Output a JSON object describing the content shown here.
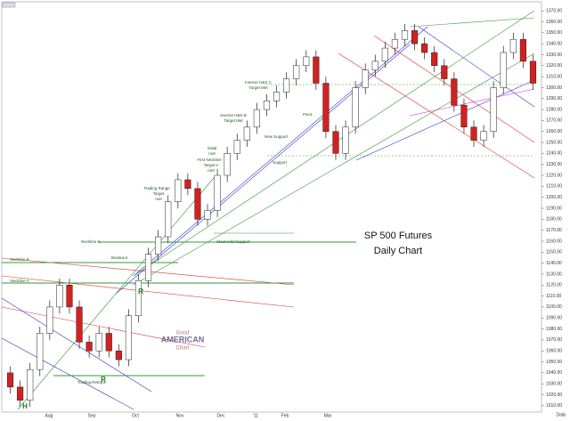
{
  "chart_data": {
    "type": "candlestick",
    "title": "SP 500 Futures",
    "subtitle": "Daily Chart",
    "x_labels": [
      "Aug",
      "Sep",
      "Oct",
      "Nov",
      "Dec",
      "'11",
      "Feb",
      "Mar"
    ],
    "period": "Daily",
    "open": [
      1040,
      1027,
      1015,
      1043,
      1076,
      1100,
      1120,
      1100,
      1068,
      1060,
      1076,
      1060,
      1052,
      1092,
      1124,
      1148,
      1164,
      1196,
      1216,
      1208,
      1180,
      1188,
      1220,
      1240,
      1252,
      1264,
      1280,
      1288,
      1296,
      1308,
      1320,
      1328,
      1304,
      1260,
      1240,
      1264,
      1300,
      1316,
      1324,
      1336,
      1344,
      1352,
      1340,
      1332,
      1320,
      1308,
      1284,
      1264,
      1252,
      1260,
      1300,
      1332,
      1344,
      1324
    ],
    "high": [
      1046,
      1033,
      1049,
      1082,
      1106,
      1126,
      1126,
      1106,
      1074,
      1082,
      1082,
      1066,
      1098,
      1130,
      1154,
      1170,
      1202,
      1222,
      1222,
      1214,
      1194,
      1226,
      1246,
      1258,
      1270,
      1286,
      1294,
      1302,
      1314,
      1326,
      1334,
      1334,
      1310,
      1266,
      1270,
      1306,
      1322,
      1330,
      1342,
      1350,
      1358,
      1358,
      1346,
      1338,
      1326,
      1314,
      1290,
      1270,
      1266,
      1306,
      1338,
      1350,
      1350,
      1330
    ],
    "low": [
      1021,
      1009,
      1009,
      1037,
      1070,
      1094,
      1094,
      1062,
      1054,
      1054,
      1054,
      1046,
      1046,
      1086,
      1118,
      1142,
      1158,
      1190,
      1202,
      1174,
      1174,
      1182,
      1214,
      1234,
      1246,
      1258,
      1274,
      1282,
      1290,
      1302,
      1314,
      1298,
      1254,
      1234,
      1234,
      1258,
      1294,
      1310,
      1318,
      1330,
      1338,
      1334,
      1326,
      1314,
      1302,
      1278,
      1258,
      1246,
      1246,
      1254,
      1294,
      1326,
      1318,
      1298
    ],
    "close": [
      1027,
      1015,
      1043,
      1076,
      1100,
      1120,
      1100,
      1068,
      1060,
      1076,
      1060,
      1052,
      1092,
      1124,
      1148,
      1164,
      1196,
      1216,
      1208,
      1180,
      1188,
      1220,
      1240,
      1252,
      1264,
      1280,
      1288,
      1296,
      1308,
      1320,
      1328,
      1304,
      1260,
      1240,
      1264,
      1300,
      1316,
      1324,
      1336,
      1344,
      1352,
      1340,
      1332,
      1320,
      1308,
      1284,
      1264,
      1252,
      1260,
      1300,
      1332,
      1344,
      1324,
      1304
    ],
    "up_color": "#ffffff",
    "down_color": "#d42020",
    "ylim": [
      1005,
      1375
    ],
    "yticks": [
      {
        "value": 1010,
        "label": "1010.00"
      },
      {
        "value": 1020,
        "label": "1020.00"
      },
      {
        "value": 1030,
        "label": "1030.00"
      },
      {
        "value": 1040,
        "label": "1040.00"
      },
      {
        "value": 1050,
        "label": "1050.00"
      },
      {
        "value": 1060,
        "label": "1060.00"
      },
      {
        "value": 1070,
        "label": "1070.00"
      },
      {
        "value": 1080,
        "label": "1080.00"
      },
      {
        "value": 1090,
        "label": "1090.00"
      },
      {
        "value": 1100,
        "label": "1100.00"
      },
      {
        "value": 1110,
        "label": "1110.00"
      },
      {
        "value": 1120,
        "label": "1120.00"
      },
      {
        "value": 1130,
        "label": "1130.00"
      },
      {
        "value": 1140,
        "label": "1140.00"
      },
      {
        "value": 1150,
        "label": "1150.00"
      },
      {
        "value": 1160,
        "label": "1160.00"
      },
      {
        "value": 1170,
        "label": "1170.00"
      },
      {
        "value": 1180,
        "label": "1180.00"
      },
      {
        "value": 1190,
        "label": "1190.00"
      },
      {
        "value": 1200,
        "label": "1200.00"
      },
      {
        "value": 1210,
        "label": "1210.00"
      },
      {
        "value": 1220,
        "label": "1220.00"
      },
      {
        "value": 1230,
        "label": "1230.00"
      },
      {
        "value": 1240,
        "label": "1240.00"
      },
      {
        "value": 1250,
        "label": "1250.00"
      },
      {
        "value": 1260,
        "label": "1260.00"
      },
      {
        "value": 1270,
        "label": "1270.00"
      },
      {
        "value": 1280,
        "label": "1280.00"
      },
      {
        "value": 1290,
        "label": "1290.00"
      },
      {
        "value": 1300,
        "label": "1300.00"
      },
      {
        "value": 1310,
        "label": "1310.00"
      },
      {
        "value": 1320,
        "label": "1320.00"
      },
      {
        "value": 1330,
        "label": "1330.00"
      },
      {
        "value": 1340,
        "label": "1340.00"
      },
      {
        "value": 1350,
        "label": "1350.00"
      },
      {
        "value": 1360,
        "label": "1360.00"
      },
      {
        "value": 1370,
        "label": "1370.00"
      }
    ],
    "annotations": [
      "Inverse H&S C",
      "Target Met",
      "Inverse H&S B",
      "Target Met",
      "Initial",
      "met",
      "First Neckline",
      "Target A",
      "met",
      "Trading Range",
      "Target",
      "met",
      "Neckline C",
      "Neckline B",
      "Neckline A",
      "Breakout",
      "Trading Retrace",
      "Must Hold Support",
      "New Support",
      "Support",
      "Pivot",
      "R",
      "R",
      "H"
    ]
  }
}
